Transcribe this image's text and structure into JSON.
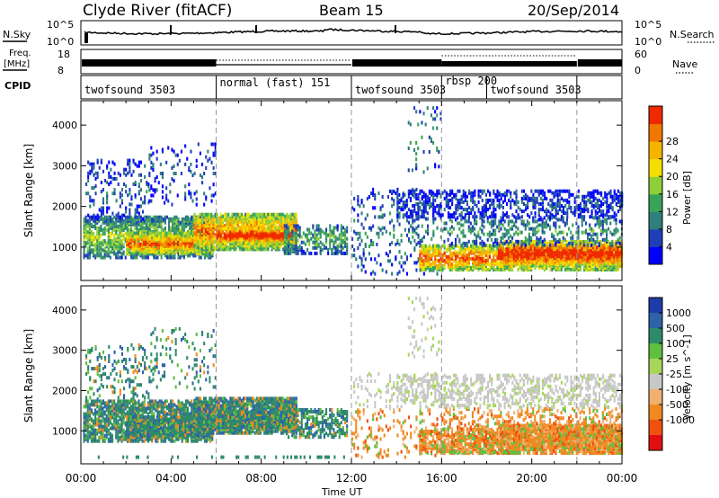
{
  "header": {
    "title": "Clyde River (fitACF)",
    "beam": "Beam 15",
    "date": "20/Sep/2014"
  },
  "top_panels": {
    "nsky_label": "N.Sky",
    "nsky_scale_top": "10^5",
    "nsky_scale_bottom": "10^0",
    "nsearch_label": "N.Search",
    "freq_label": "Freq.",
    "freq_unit": "[MHz]",
    "freq_ticks": [
      "18",
      "8"
    ],
    "nave_ticks": [
      "60",
      "0"
    ],
    "nave_label": "Nave",
    "cpid_label": "CPID"
  },
  "cpid_segments": [
    {
      "label": "twofsound 3503",
      "start": 0,
      "end": 6
    },
    {
      "label": "normal (fast) 151",
      "start": 6,
      "end": 12
    },
    {
      "label": "twofsound 3503",
      "start": 12,
      "end": 16
    },
    {
      "label": "rbsp 200",
      "start": 16,
      "end": 18
    },
    {
      "label": "twofsound 3503",
      "start": 18,
      "end": 22
    },
    {
      "label": "",
      "start": 22,
      "end": 24
    }
  ],
  "chart_data": [
    {
      "type": "heatmap",
      "name": "Power",
      "xlabel": "Time UT",
      "ylabel": "Slant Range [km]",
      "x_ticks": [
        "00:00",
        "04:00",
        "08:00",
        "12:00",
        "16:00",
        "20:00",
        "00:00"
      ],
      "x_range_hours": [
        0,
        24
      ],
      "y_range_km": [
        180,
        4600
      ],
      "y_ticks": [
        1000,
        2000,
        3000,
        4000
      ],
      "colorbar_label": "Power [dB]",
      "colorbar_ticks": [
        "4",
        "8",
        "12",
        "16",
        "20",
        "24",
        "28"
      ],
      "colorbar_colors": [
        "#0000ff",
        "#1f3fb8",
        "#2f7f7a",
        "#3aa35a",
        "#8fcf3a",
        "#f4e000",
        "#f6b400",
        "#f07800",
        "#f02800"
      ]
    },
    {
      "type": "heatmap",
      "name": "Velocity",
      "xlabel": "Time UT",
      "ylabel": "Slant Range [km]",
      "x_ticks": [
        "00:00",
        "04:00",
        "08:00",
        "12:00",
        "16:00",
        "20:00",
        "00:00"
      ],
      "x_range_hours": [
        0,
        24
      ],
      "y_range_km": [
        180,
        4600
      ],
      "y_ticks": [
        1000,
        2000,
        3000,
        4000
      ],
      "colorbar_label": "Velocity [m s^-1]",
      "colorbar_ticks": [
        "1000",
        "500",
        "100",
        "25",
        "-25",
        "-100",
        "-500",
        "-1000"
      ],
      "colorbar_colors": [
        "#1e3ca8",
        "#2e63a8",
        "#2e8a6a",
        "#5fbf40",
        "#a8d65a",
        "#c8c8c8",
        "#f0b070",
        "#f08a20",
        "#f05010",
        "#e01010"
      ]
    }
  ]
}
